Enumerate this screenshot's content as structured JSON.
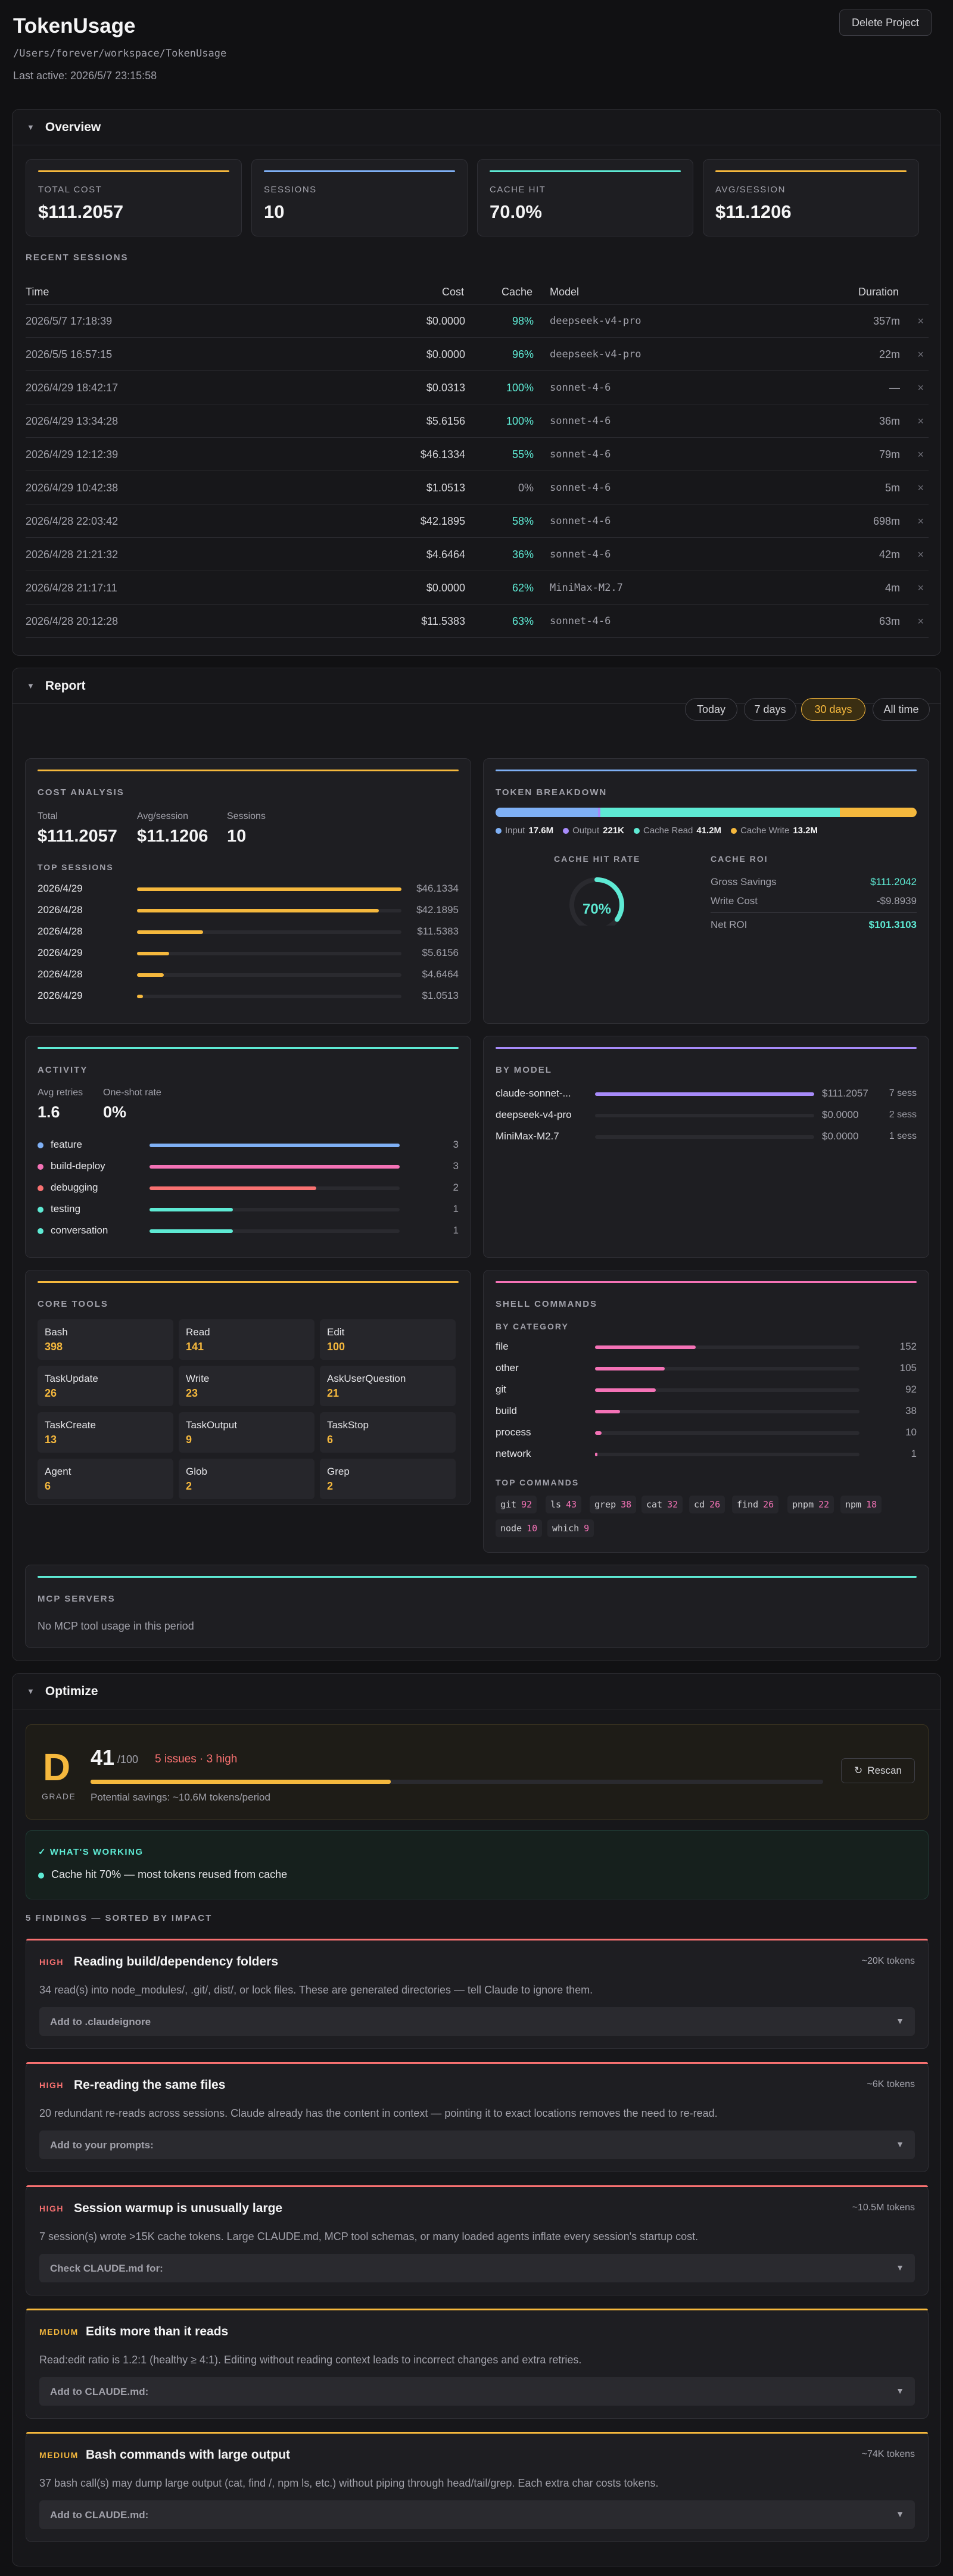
{
  "header": {
    "title": "TokenUsage",
    "path": "/Users/forever/workspace/TokenUsage",
    "last_active": "Last active: 2026/5/7 23:15:58",
    "delete_label": "Delete Project"
  },
  "overview": {
    "title": "Overview",
    "stats": [
      {
        "label": "TOTAL COST",
        "value": "$111.2057",
        "color": "#f5b83d"
      },
      {
        "label": "SESSIONS",
        "value": "10",
        "color": "#7fb0f5"
      },
      {
        "label": "CACHE HIT",
        "value": "70.0%",
        "color": "#5eead4"
      },
      {
        "label": "AVG/SESSION",
        "value": "$11.1206",
        "color": "#f5b83d"
      }
    ],
    "recent_title": "RECENT SESSIONS",
    "columns": {
      "time": "Time",
      "cost": "Cost",
      "cache": "Cache",
      "model": "Model",
      "duration": "Duration"
    },
    "sessions": [
      {
        "time": "2026/5/7 17:18:39",
        "cost": "$0.0000",
        "cache": "98%",
        "model": "deepseek-v4-pro",
        "duration": "357m"
      },
      {
        "time": "2026/5/5 16:57:15",
        "cost": "$0.0000",
        "cache": "96%",
        "model": "deepseek-v4-pro",
        "duration": "22m"
      },
      {
        "time": "2026/4/29 18:42:17",
        "cost": "$0.0313",
        "cache": "100%",
        "model": "sonnet-4-6",
        "duration": "—"
      },
      {
        "time": "2026/4/29 13:34:28",
        "cost": "$5.6156",
        "cache": "100%",
        "model": "sonnet-4-6",
        "duration": "36m"
      },
      {
        "time": "2026/4/29 12:12:39",
        "cost": "$46.1334",
        "cache": "55%",
        "model": "sonnet-4-6",
        "duration": "79m"
      },
      {
        "time": "2026/4/29 10:42:38",
        "cost": "$1.0513",
        "cache": "0%",
        "model": "sonnet-4-6",
        "duration": "5m"
      },
      {
        "time": "2026/4/28 22:03:42",
        "cost": "$42.1895",
        "cache": "58%",
        "model": "sonnet-4-6",
        "duration": "698m"
      },
      {
        "time": "2026/4/28 21:21:32",
        "cost": "$4.6464",
        "cache": "36%",
        "model": "sonnet-4-6",
        "duration": "42m"
      },
      {
        "time": "2026/4/28 21:17:11",
        "cost": "$0.0000",
        "cache": "62%",
        "model": "MiniMax-M2.7",
        "duration": "4m"
      },
      {
        "time": "2026/4/28 20:12:28",
        "cost": "$11.5383",
        "cache": "63%",
        "model": "sonnet-4-6",
        "duration": "63m"
      }
    ],
    "remove_glyph": "×"
  },
  "report": {
    "title": "Report",
    "ranges": [
      "Today",
      "7 days",
      "30 days",
      "All time"
    ],
    "active_range": "30 days",
    "cost_analysis": {
      "title": "COST ANALYSIS",
      "total_label": "Total",
      "total": "$111.2057",
      "avg_label": "Avg/session",
      "avg": "$11.1206",
      "sessions_label": "Sessions",
      "sessions": "10",
      "top_title": "TOP SESSIONS",
      "top": [
        {
          "date": "2026/4/29",
          "cost": "$46.1334",
          "v": 46.1334
        },
        {
          "date": "2026/4/28",
          "cost": "$42.1895",
          "v": 42.1895
        },
        {
          "date": "2026/4/28",
          "cost": "$11.5383",
          "v": 11.5383
        },
        {
          "date": "2026/4/29",
          "cost": "$5.6156",
          "v": 5.6156
        },
        {
          "date": "2026/4/28",
          "cost": "$4.6464",
          "v": 4.6464
        },
        {
          "date": "2026/4/29",
          "cost": "$1.0513",
          "v": 1.0513
        }
      ]
    },
    "token_breakdown": {
      "title": "TOKEN BREAKDOWN",
      "parts": [
        {
          "name": "Input",
          "value": "17.6M",
          "v": 17.6,
          "color": "#7fb0f5"
        },
        {
          "name": "Output",
          "value": "221K",
          "v": 0.221,
          "color": "#a78bfa"
        },
        {
          "name": "Cache Read",
          "value": "41.2M",
          "v": 41.2,
          "color": "#5eead4"
        },
        {
          "name": "Cache Write",
          "value": "13.2M",
          "v": 13.2,
          "color": "#f5b83d"
        }
      ],
      "hit_title": "CACHE HIT RATE",
      "hit_rate": "70%",
      "hit_fraction": 0.7,
      "roi_title": "CACHE ROI",
      "gross_label": "Gross Savings",
      "gross": "$111.2042",
      "write_label": "Write Cost",
      "write": "-$9.8939",
      "net_label": "Net ROI",
      "net": "$101.3103"
    },
    "activity": {
      "title": "ACTIVITY",
      "retries_label": "Avg retries",
      "retries": "1.6",
      "oneshot_label": "One-shot rate",
      "oneshot": "0%",
      "items": [
        {
          "name": "feature",
          "count": "3",
          "v": 3,
          "color": "#7fb0f5"
        },
        {
          "name": "build-deploy",
          "count": "3",
          "v": 3,
          "color": "#f472b6"
        },
        {
          "name": "debugging",
          "count": "2",
          "v": 2,
          "color": "#f87171"
        },
        {
          "name": "testing",
          "count": "1",
          "v": 1,
          "color": "#5eead4"
        },
        {
          "name": "conversation",
          "count": "1",
          "v": 1,
          "color": "#5eead4"
        }
      ]
    },
    "by_model": {
      "title": "BY MODEL",
      "items": [
        {
          "name": "claude-sonnet-...",
          "cost": "$111.2057",
          "sess": "7 sess",
          "v": 111.2057
        },
        {
          "name": "deepseek-v4-pro",
          "cost": "$0.0000",
          "sess": "2 sess",
          "v": 0
        },
        {
          "name": "MiniMax-M2.7",
          "cost": "$0.0000",
          "sess": "1 sess",
          "v": 0
        }
      ]
    },
    "core_tools": {
      "title": "CORE TOOLS",
      "items": [
        {
          "name": "Bash",
          "count": "398"
        },
        {
          "name": "Read",
          "count": "141"
        },
        {
          "name": "Edit",
          "count": "100"
        },
        {
          "name": "TaskUpdate",
          "count": "26"
        },
        {
          "name": "Write",
          "count": "23"
        },
        {
          "name": "AskUserQuestion",
          "count": "21"
        },
        {
          "name": "TaskCreate",
          "count": "13"
        },
        {
          "name": "TaskOutput",
          "count": "9"
        },
        {
          "name": "TaskStop",
          "count": "6"
        },
        {
          "name": "Agent",
          "count": "6"
        },
        {
          "name": "Glob",
          "count": "2"
        },
        {
          "name": "Grep",
          "count": "2"
        }
      ]
    },
    "shell": {
      "title": "SHELL COMMANDS",
      "cat_title": "BY CATEGORY",
      "categories": [
        {
          "name": "file",
          "count": "152",
          "v": 152
        },
        {
          "name": "other",
          "count": "105",
          "v": 105
        },
        {
          "name": "git",
          "count": "92",
          "v": 92
        },
        {
          "name": "build",
          "count": "38",
          "v": 38
        },
        {
          "name": "process",
          "count": "10",
          "v": 10
        },
        {
          "name": "network",
          "count": "1",
          "v": 1
        }
      ],
      "top_title": "TOP COMMANDS",
      "commands": [
        {
          "cmd": "git",
          "n": "92"
        },
        {
          "cmd": "ls",
          "n": "43"
        },
        {
          "cmd": "grep",
          "n": "38"
        },
        {
          "cmd": "cat",
          "n": "32"
        },
        {
          "cmd": "cd",
          "n": "26"
        },
        {
          "cmd": "find",
          "n": "26"
        },
        {
          "cmd": "pnpm",
          "n": "22"
        },
        {
          "cmd": "npm",
          "n": "18"
        },
        {
          "cmd": "node",
          "n": "10"
        },
        {
          "cmd": "which",
          "n": "9"
        }
      ]
    },
    "mcp": {
      "title": "MCP SERVERS",
      "empty": "No MCP tool usage in this period"
    }
  },
  "optimize": {
    "title": "Optimize",
    "grade": "D",
    "grade_label": "GRADE",
    "score": "41",
    "score_max": "/100",
    "score_fraction": 0.41,
    "issues": "5 issues · 3 high",
    "savings": "Potential savings: ~10.6M tokens/period",
    "rescan": "Rescan",
    "working_title": "WHAT'S WORKING",
    "working_items": [
      "Cache hit 70% — most tokens reused from cache"
    ],
    "findings_title": "5 FINDINGS — SORTED BY IMPACT",
    "findings": [
      {
        "sev": "HIGH",
        "title": "Reading build/dependency folders",
        "tokens": "~20K tokens",
        "desc": "34 read(s) into node_modules/, .git/, dist/, or lock files. These are generated directories — tell Claude to ignore them.",
        "action": "Add to .claudeignore"
      },
      {
        "sev": "HIGH",
        "title": "Re-reading the same files",
        "tokens": "~6K tokens",
        "desc": "20 redundant re-reads across sessions. Claude already has the content in context — pointing it to exact locations removes the need to re-read.",
        "action": "Add to your prompts:"
      },
      {
        "sev": "HIGH",
        "title": "Session warmup is unusually large",
        "tokens": "~10.5M tokens",
        "desc": "7 session(s) wrote >15K cache tokens. Large CLAUDE.md, MCP tool schemas, or many loaded agents inflate every session's startup cost.",
        "action": "Check CLAUDE.md for:"
      },
      {
        "sev": "MEDIUM",
        "title": "Edits more than it reads",
        "tokens": "",
        "desc": "Read:edit ratio is 1.2:1 (healthy ≥ 4:1). Editing without reading context leads to incorrect changes and extra retries.",
        "action": "Add to CLAUDE.md:"
      },
      {
        "sev": "MEDIUM",
        "title": "Bash commands with large output",
        "tokens": "~74K tokens",
        "desc": "37 bash call(s) may dump large output (cat, find /, npm ls, etc.) without piping through head/tail/grep. Each extra char costs tokens.",
        "action": "Add to CLAUDE.md:"
      }
    ]
  },
  "colors": {
    "amber": "#f5b83d",
    "teal": "#5eead4",
    "high": "#f87171",
    "medium": "#f5b83d"
  }
}
